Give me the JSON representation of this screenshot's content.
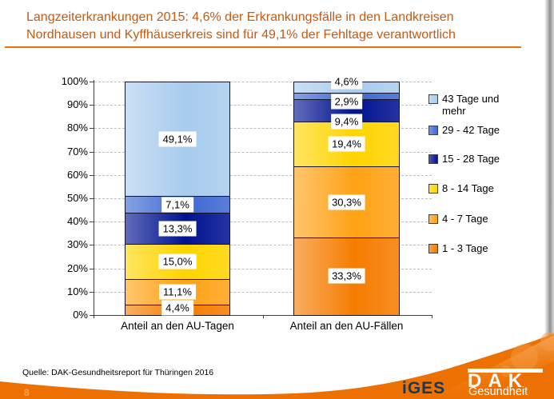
{
  "slide": {
    "title_line1": "Langzeiterkrankungen 2015: 4,6% der Erkrankungsfälle in den Landkreisen",
    "title_line2": "Nordhausen und Kyffhäuserkreis sind für 49,1% der Fehltage verantwortlich",
    "source": "Quelle: DAK-Gesundheitsreport für Thüringen 2016",
    "page_number": "8"
  },
  "logos": {
    "iges_text": "iGES",
    "dak_text": "DAK",
    "dak_subtext": "Gesundheit"
  },
  "colors": {
    "title": "#C55A11",
    "title_rule": "#E8730E",
    "swoosh_orange": "#ED7102",
    "iges_blue": "#17375E",
    "grid": "#BDBDBD",
    "axis": "#404040"
  },
  "chart_data": {
    "type": "bar",
    "stacked": true,
    "unit": "%",
    "categories": [
      "Anteil an den AU-Tagen",
      "Anteil an den AU-Fällen"
    ],
    "series": [
      {
        "name": "1 - 3 Tage",
        "color": "#F57C00",
        "values": [
          4.4,
          33.3
        ]
      },
      {
        "name": "4 - 7 Tage",
        "color": "#FFA215",
        "values": [
          11.1,
          30.3
        ]
      },
      {
        "name": "8 - 14 Tage",
        "color": "#FFD400",
        "values": [
          15.0,
          19.4
        ]
      },
      {
        "name": "15 - 28 Tage",
        "color": "#001290",
        "values": [
          13.3,
          9.4
        ]
      },
      {
        "name": "29 - 42 Tage",
        "color": "#3E68D2",
        "values": [
          7.1,
          2.9
        ]
      },
      {
        "name": "43 Tage und mehr",
        "color": "#A8CCEE",
        "values": [
          49.1,
          4.6
        ]
      }
    ],
    "value_labels": {
      "Anteil an den AU-Tagen": [
        "4,4%",
        "11,1%",
        "15,0%",
        "13,3%",
        "7,1%",
        "49,1%"
      ],
      "Anteil an den AU-Fällen": [
        "33,3%",
        "30,3%",
        "19,4%",
        "9,4%",
        "2,9%",
        "4,6%"
      ]
    },
    "ylim": [
      0,
      100
    ],
    "ytick_labels": [
      "0%",
      "10%",
      "20%",
      "30%",
      "40%",
      "50%",
      "60%",
      "70%",
      "80%",
      "90%",
      "100%"
    ],
    "grid": "horizontal-dashed",
    "legend_position": "right"
  }
}
